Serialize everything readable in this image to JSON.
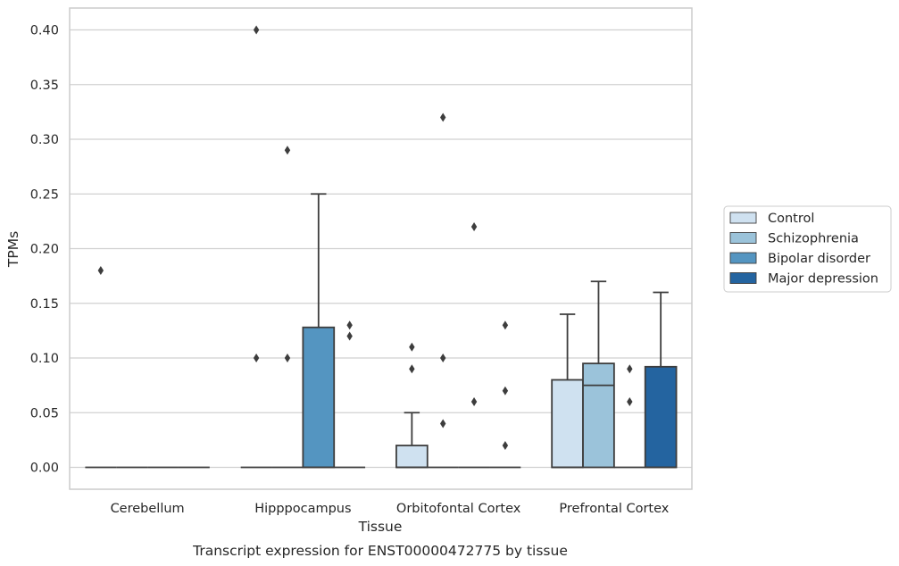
{
  "caption": "Transcript expression for ENST00000472775 by tissue",
  "chart_data": {
    "type": "box",
    "xlabel": "Tissue",
    "ylabel": "TPMs",
    "ylim": [
      -0.02,
      0.42
    ],
    "yticks": [
      "0.00",
      "0.05",
      "0.10",
      "0.15",
      "0.20",
      "0.25",
      "0.30",
      "0.35",
      "0.40"
    ],
    "ytick_values": [
      0,
      0.05,
      0.1,
      0.15,
      0.2,
      0.25,
      0.3,
      0.35,
      0.4
    ],
    "grid": "horizontal",
    "legend_position": "right, outside plot",
    "categories": [
      "Cerebellum",
      "Hipppocampus",
      "Orbitofontal Cortex",
      "Prefrontal Cortex"
    ],
    "series": [
      {
        "name": "Control",
        "color": "#cfe1f0",
        "boxes": [
          {
            "q1": 0,
            "median": 0,
            "q3": 0,
            "whislo": 0,
            "whishi": 0,
            "fliers": [
              0.18
            ]
          },
          {
            "q1": 0,
            "median": 0,
            "q3": 0,
            "whislo": 0,
            "whishi": 0,
            "fliers": [
              0.4,
              0.1
            ]
          },
          {
            "q1": 0,
            "median": 0,
            "q3": 0.02,
            "whislo": 0,
            "whishi": 0.05,
            "fliers": [
              0.11,
              0.09
            ]
          },
          {
            "q1": 0,
            "median": 0,
            "q3": 0.08,
            "whislo": 0,
            "whishi": 0.14,
            "fliers": []
          }
        ]
      },
      {
        "name": "Schizophrenia",
        "color": "#9bc3da",
        "boxes": [
          {
            "q1": 0,
            "median": 0,
            "q3": 0,
            "whislo": 0,
            "whishi": 0,
            "fliers": []
          },
          {
            "q1": 0,
            "median": 0,
            "q3": 0,
            "whislo": 0,
            "whishi": 0,
            "fliers": [
              0.29,
              0.1
            ]
          },
          {
            "q1": 0,
            "median": 0,
            "q3": 0,
            "whislo": 0,
            "whishi": 0,
            "fliers": [
              0.32,
              0.1,
              0.04
            ]
          },
          {
            "q1": 0,
            "median": 0.075,
            "q3": 0.095,
            "whislo": 0,
            "whishi": 0.17,
            "fliers": []
          }
        ]
      },
      {
        "name": "Bipolar disorder",
        "color": "#5495c1",
        "boxes": [
          {
            "q1": 0,
            "median": 0,
            "q3": 0,
            "whislo": 0,
            "whishi": 0,
            "fliers": []
          },
          {
            "q1": 0,
            "median": 0,
            "q3": 0.128,
            "whislo": 0,
            "whishi": 0.25,
            "fliers": []
          },
          {
            "q1": 0,
            "median": 0,
            "q3": 0,
            "whislo": 0,
            "whishi": 0,
            "fliers": [
              0.22,
              0.06
            ]
          },
          {
            "q1": 0,
            "median": 0,
            "q3": 0,
            "whislo": 0,
            "whishi": 0,
            "fliers": [
              0.09,
              0.06
            ]
          }
        ]
      },
      {
        "name": "Major depression",
        "color": "#2464a0",
        "boxes": [
          {
            "q1": 0,
            "median": 0,
            "q3": 0,
            "whislo": 0,
            "whishi": 0,
            "fliers": []
          },
          {
            "q1": 0,
            "median": 0,
            "q3": 0,
            "whislo": 0,
            "whishi": 0,
            "fliers": [
              0.13,
              0.12
            ]
          },
          {
            "q1": 0,
            "median": 0,
            "q3": 0,
            "whislo": 0,
            "whishi": 0,
            "fliers": [
              0.13,
              0.07,
              0.02
            ]
          },
          {
            "q1": 0,
            "median": 0,
            "q3": 0.092,
            "whislo": 0,
            "whishi": 0.16,
            "fliers": []
          }
        ]
      }
    ]
  }
}
